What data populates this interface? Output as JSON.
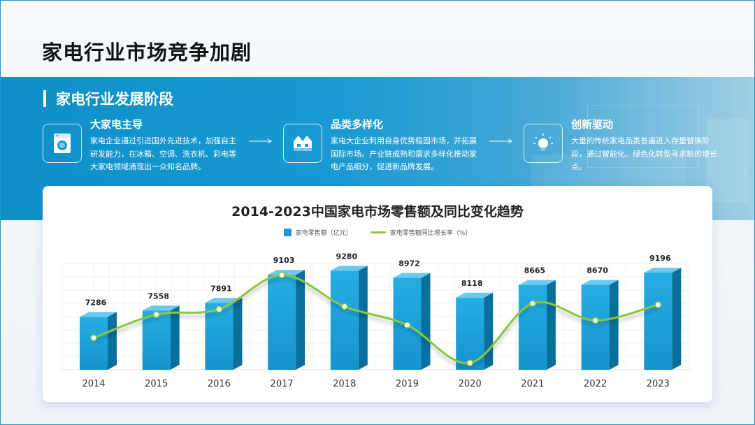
{
  "page": {
    "title": "家电行业市场竞争加剧"
  },
  "section": {
    "title": "家电行业发展阶段"
  },
  "stages": [
    {
      "title": "大家电主导",
      "desc": "家电企业通过引进国外先进技术，加强自主研发能力，在冰箱、空调、洗衣机、彩电等大家电领域涌现出一众知名品牌。",
      "icon": "washing-machine-icon"
    },
    {
      "title": "品类多样化",
      "desc": "家电大企业利用自身优势稳固市场，并拓展国际市场。产业链成熟和需求多样化推动家电产品细分，促进新品牌发展。",
      "icon": "factory-icon"
    },
    {
      "title": "创新驱动",
      "desc": "大量的传统家电品类普遍进入存量替换阶段，通过智能化、绿色化转型寻求新的增长点。",
      "icon": "lightbulb-icon"
    }
  ],
  "colors": {
    "accent": "#1a9ad2",
    "line": "#8cc63f"
  },
  "chart_data": {
    "type": "bar",
    "title": "2014-2023中国家电市场零售额及同比变化趋势",
    "categories": [
      "2014",
      "2015",
      "2016",
      "2017",
      "2018",
      "2019",
      "2020",
      "2021",
      "2022",
      "2023"
    ],
    "series": [
      {
        "name": "家电零售额（亿元）",
        "type": "bar",
        "values": [
          7286,
          7558,
          7891,
          9103,
          9280,
          8972,
          8118,
          8665,
          8670,
          9196
        ]
      },
      {
        "name": "家电零售额同比增长率（%）",
        "type": "line",
        "values": [
          5.6,
          9.6,
          10.5,
          16.4,
          11.0,
          7.8,
          1.3,
          11.5,
          8.6,
          11.3
        ]
      }
    ],
    "grid": true,
    "legend": "top-center"
  }
}
